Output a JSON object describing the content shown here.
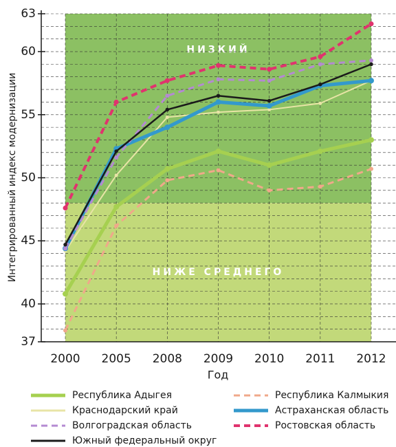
{
  "chart_data": {
    "type": "line",
    "y_label": "Интегрированный индекс модернизации",
    "x_label": "Год",
    "categories": [
      "2000",
      "2005",
      "2008",
      "2009",
      "2010",
      "2011",
      "2012"
    ],
    "ylim": [
      37,
      63
    ],
    "yticks": [
      37,
      40,
      45,
      50,
      55,
      60,
      63
    ],
    "minor_yticks": [
      38,
      39,
      41,
      42,
      43,
      44,
      46,
      47,
      48,
      49,
      51,
      52,
      53,
      54,
      56,
      57,
      58,
      59,
      61,
      62
    ],
    "grid": true,
    "bands": [
      {
        "label": "НИЗКИЙ",
        "from": 48,
        "to": 63,
        "color": "#8cc063"
      },
      {
        "label": "НИЖЕ СРЕДНЕГО",
        "from": 37,
        "to": 48,
        "color": "#c2d97a"
      }
    ],
    "series": [
      {
        "name": "Республика Адыгея",
        "color": "#a6d050",
        "width": 5,
        "dashed": false,
        "values": [
          40.8,
          47.7,
          50.7,
          52.1,
          51.0,
          52.1,
          53.0
        ]
      },
      {
        "name": "Республика Калмыкия",
        "color": "#f0a88a",
        "width": 3,
        "dashed": true,
        "values": [
          37.9,
          46.2,
          49.8,
          50.6,
          49.0,
          49.3,
          50.7
        ]
      },
      {
        "name": "Краснодарский край",
        "color": "#e8e4a6",
        "width": 2,
        "dashed": false,
        "values": [
          44.2,
          50.2,
          54.8,
          55.2,
          55.4,
          55.9,
          57.7
        ]
      },
      {
        "name": "Астраханская область",
        "color": "#3399cc",
        "width": 5,
        "dashed": false,
        "values": [
          44.4,
          52.3,
          54.0,
          56.0,
          55.7,
          57.3,
          57.7
        ]
      },
      {
        "name": "Волгоградская область",
        "color": "#b48ad2",
        "width": 3,
        "dashed": true,
        "values": [
          44.4,
          51.6,
          56.5,
          57.8,
          57.7,
          59.0,
          59.3
        ]
      },
      {
        "name": "Ростовская область",
        "color": "#e0336e",
        "width": 4,
        "dashed": true,
        "values": [
          47.6,
          56.0,
          57.7,
          58.9,
          58.6,
          59.6,
          62.2
        ]
      },
      {
        "name": "Южный федеральный округ",
        "color": "#1a1a1a",
        "width": 2.5,
        "dashed": false,
        "values": [
          44.7,
          52.1,
          55.4,
          56.5,
          56.1,
          57.4,
          59.0
        ]
      }
    ]
  }
}
